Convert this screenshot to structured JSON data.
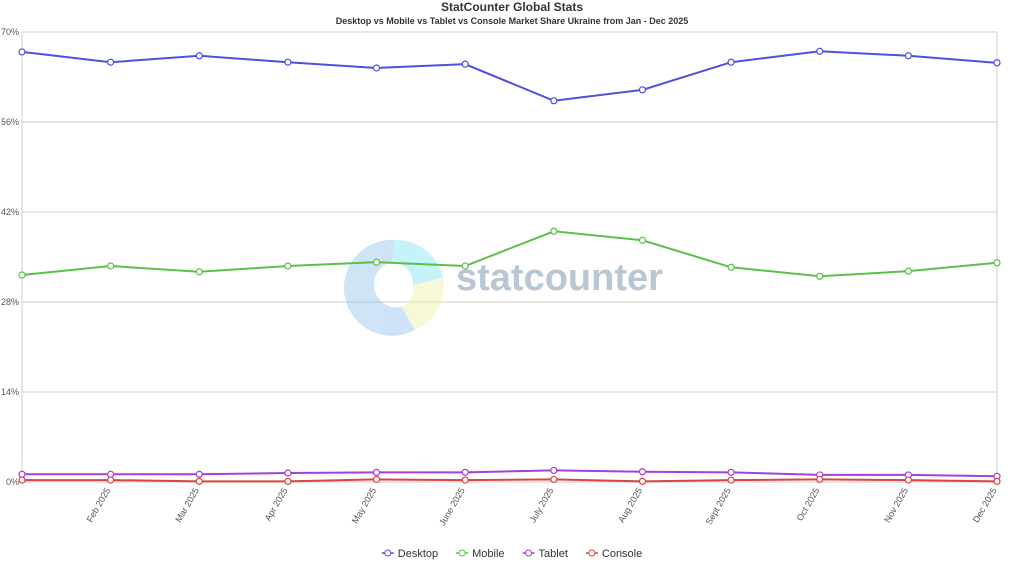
{
  "chart_data": {
    "type": "line",
    "title": "StatCounter Global Stats",
    "subtitle": "Desktop vs Mobile vs Tablet vs Console Market Share Ukraine from Jan - Dec 2025",
    "watermark": "statcounter",
    "categories": [
      null,
      "Feb 2025",
      "Mar 2025",
      "Apr 2025",
      "May 2025",
      "June 2025",
      "July 2025",
      "Aug 2025",
      "Sept 2025",
      "Oct 2025",
      "Nov 2025",
      "Dec 2025"
    ],
    "series": [
      {
        "name": "Desktop",
        "color": "#4f4fe0",
        "values": [
          66.9,
          65.3,
          66.3,
          65.3,
          64.4,
          65.0,
          59.3,
          61.0,
          65.3,
          67.0,
          66.3,
          65.2
        ]
      },
      {
        "name": "Mobile",
        "color": "#5cbf4a",
        "values": [
          32.2,
          33.6,
          32.7,
          33.6,
          34.2,
          33.6,
          39.0,
          37.6,
          33.4,
          32.0,
          32.8,
          34.1
        ]
      },
      {
        "name": "Tablet",
        "color": "#a63fd9",
        "values": [
          1.2,
          1.2,
          1.2,
          1.4,
          1.5,
          1.5,
          1.8,
          1.6,
          1.5,
          1.1,
          1.1,
          0.9
        ]
      },
      {
        "name": "Console",
        "color": "#d9453f",
        "values": [
          0.3,
          0.3,
          0.1,
          0.1,
          0.4,
          0.3,
          0.4,
          0.1,
          0.3,
          0.4,
          0.3,
          0.1
        ]
      }
    ],
    "ylim": [
      0,
      70
    ],
    "yticks": [
      {
        "value": 0,
        "label": "0%"
      },
      {
        "value": 14,
        "label": "14%"
      },
      {
        "value": 28,
        "label": "28%"
      },
      {
        "value": 42,
        "label": "42%"
      },
      {
        "value": 56,
        "label": "56%"
      },
      {
        "value": 70,
        "label": "70%"
      }
    ],
    "grid": true,
    "legend": "bottom"
  }
}
